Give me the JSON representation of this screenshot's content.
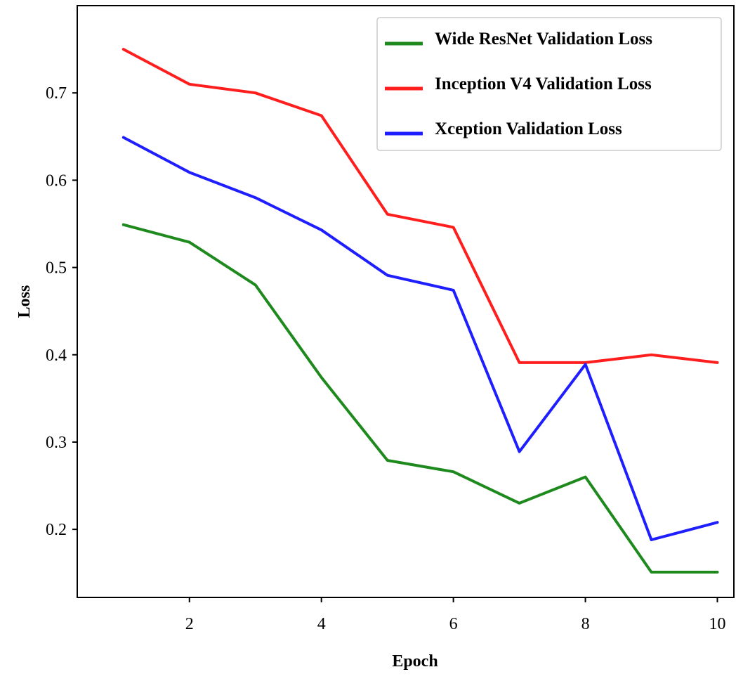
{
  "chart_data": {
    "type": "line",
    "title": "",
    "xlabel": "Epoch",
    "ylabel": "Loss",
    "x": [
      1,
      2,
      3,
      4,
      5,
      6,
      7,
      8,
      9,
      10
    ],
    "xlim": [
      0.3,
      10.25
    ],
    "ylim": [
      0.122,
      0.8
    ],
    "xticks": [
      2,
      4,
      6,
      8,
      10
    ],
    "xtick_labels": [
      "2",
      "4",
      "6",
      "8",
      "10"
    ],
    "yticks": [
      0.2,
      0.3,
      0.4,
      0.5,
      0.6,
      0.7
    ],
    "ytick_labels": [
      "0.2",
      "0.3",
      "0.4",
      "0.5",
      "0.6",
      "0.7"
    ],
    "grid": false,
    "legend_position": "top-right",
    "series": [
      {
        "name": "Wide ResNet Validation Loss",
        "color": "#1e8a1e",
        "values": [
          0.549,
          0.529,
          0.48,
          0.374,
          0.279,
          0.266,
          0.23,
          0.26,
          0.151,
          0.151
        ]
      },
      {
        "name": "Inception V4 Validation Loss",
        "color": "#ff1e1e",
        "values": [
          0.75,
          0.71,
          0.7,
          0.674,
          0.561,
          0.546,
          0.391,
          0.391,
          0.4,
          0.391
        ]
      },
      {
        "name": "Xception Validation Loss",
        "color": "#1e1eff",
        "values": [
          0.649,
          0.609,
          0.58,
          0.543,
          0.491,
          0.474,
          0.289,
          0.389,
          0.188,
          0.208
        ]
      }
    ]
  }
}
